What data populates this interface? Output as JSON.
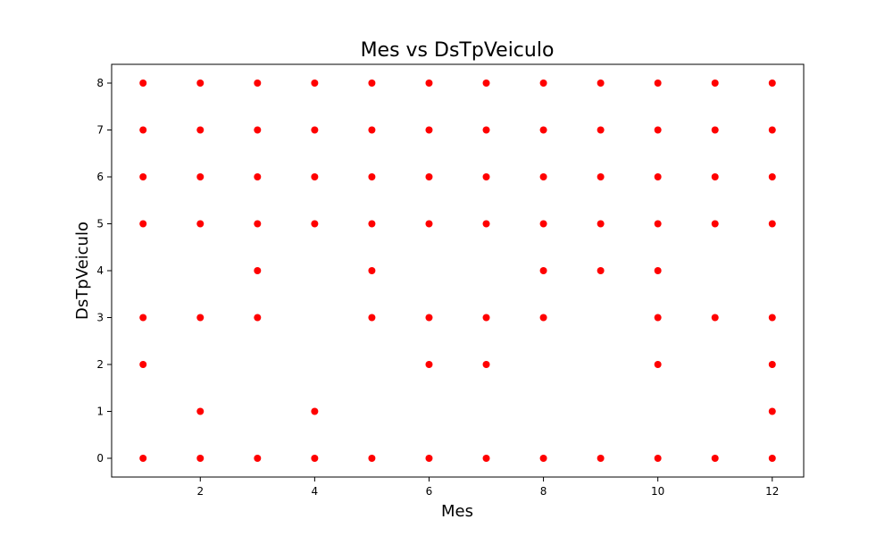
{
  "chart_data": {
    "type": "scatter",
    "title": "Mes vs DsTpVeiculo",
    "xlabel": "Mes",
    "ylabel": "DsTpVeiculo",
    "xlim": [
      0.45,
      12.55
    ],
    "ylim": [
      -0.4,
      8.4
    ],
    "xticks": [
      2,
      4,
      6,
      8,
      10,
      12
    ],
    "yticks": [
      0,
      1,
      2,
      3,
      4,
      5,
      6,
      7,
      8
    ],
    "grid": false,
    "legend": "none",
    "point_color": "#ff0000",
    "series": [
      {
        "points": [
          [
            1,
            0
          ],
          [
            1,
            2
          ],
          [
            1,
            3
          ],
          [
            1,
            5
          ],
          [
            1,
            6
          ],
          [
            1,
            7
          ],
          [
            1,
            8
          ],
          [
            2,
            0
          ],
          [
            2,
            1
          ],
          [
            2,
            3
          ],
          [
            2,
            5
          ],
          [
            2,
            6
          ],
          [
            2,
            7
          ],
          [
            2,
            8
          ],
          [
            3,
            0
          ],
          [
            3,
            3
          ],
          [
            3,
            4
          ],
          [
            3,
            5
          ],
          [
            3,
            6
          ],
          [
            3,
            7
          ],
          [
            3,
            8
          ],
          [
            4,
            0
          ],
          [
            4,
            1
          ],
          [
            4,
            5
          ],
          [
            4,
            6
          ],
          [
            4,
            7
          ],
          [
            4,
            8
          ],
          [
            5,
            0
          ],
          [
            5,
            3
          ],
          [
            5,
            4
          ],
          [
            5,
            5
          ],
          [
            5,
            6
          ],
          [
            5,
            7
          ],
          [
            5,
            8
          ],
          [
            6,
            0
          ],
          [
            6,
            2
          ],
          [
            6,
            3
          ],
          [
            6,
            5
          ],
          [
            6,
            6
          ],
          [
            6,
            7
          ],
          [
            6,
            8
          ],
          [
            7,
            0
          ],
          [
            7,
            2
          ],
          [
            7,
            3
          ],
          [
            7,
            5
          ],
          [
            7,
            6
          ],
          [
            7,
            7
          ],
          [
            7,
            8
          ],
          [
            8,
            0
          ],
          [
            8,
            3
          ],
          [
            8,
            4
          ],
          [
            8,
            5
          ],
          [
            8,
            6
          ],
          [
            8,
            7
          ],
          [
            8,
            8
          ],
          [
            9,
            0
          ],
          [
            9,
            4
          ],
          [
            9,
            5
          ],
          [
            9,
            6
          ],
          [
            9,
            7
          ],
          [
            9,
            8
          ],
          [
            10,
            0
          ],
          [
            10,
            2
          ],
          [
            10,
            3
          ],
          [
            10,
            4
          ],
          [
            10,
            5
          ],
          [
            10,
            6
          ],
          [
            10,
            7
          ],
          [
            10,
            8
          ],
          [
            11,
            0
          ],
          [
            11,
            3
          ],
          [
            11,
            5
          ],
          [
            11,
            6
          ],
          [
            11,
            7
          ],
          [
            11,
            8
          ],
          [
            12,
            0
          ],
          [
            12,
            1
          ],
          [
            12,
            2
          ],
          [
            12,
            3
          ],
          [
            12,
            5
          ],
          [
            12,
            6
          ],
          [
            12,
            7
          ],
          [
            12,
            8
          ]
        ]
      }
    ]
  }
}
